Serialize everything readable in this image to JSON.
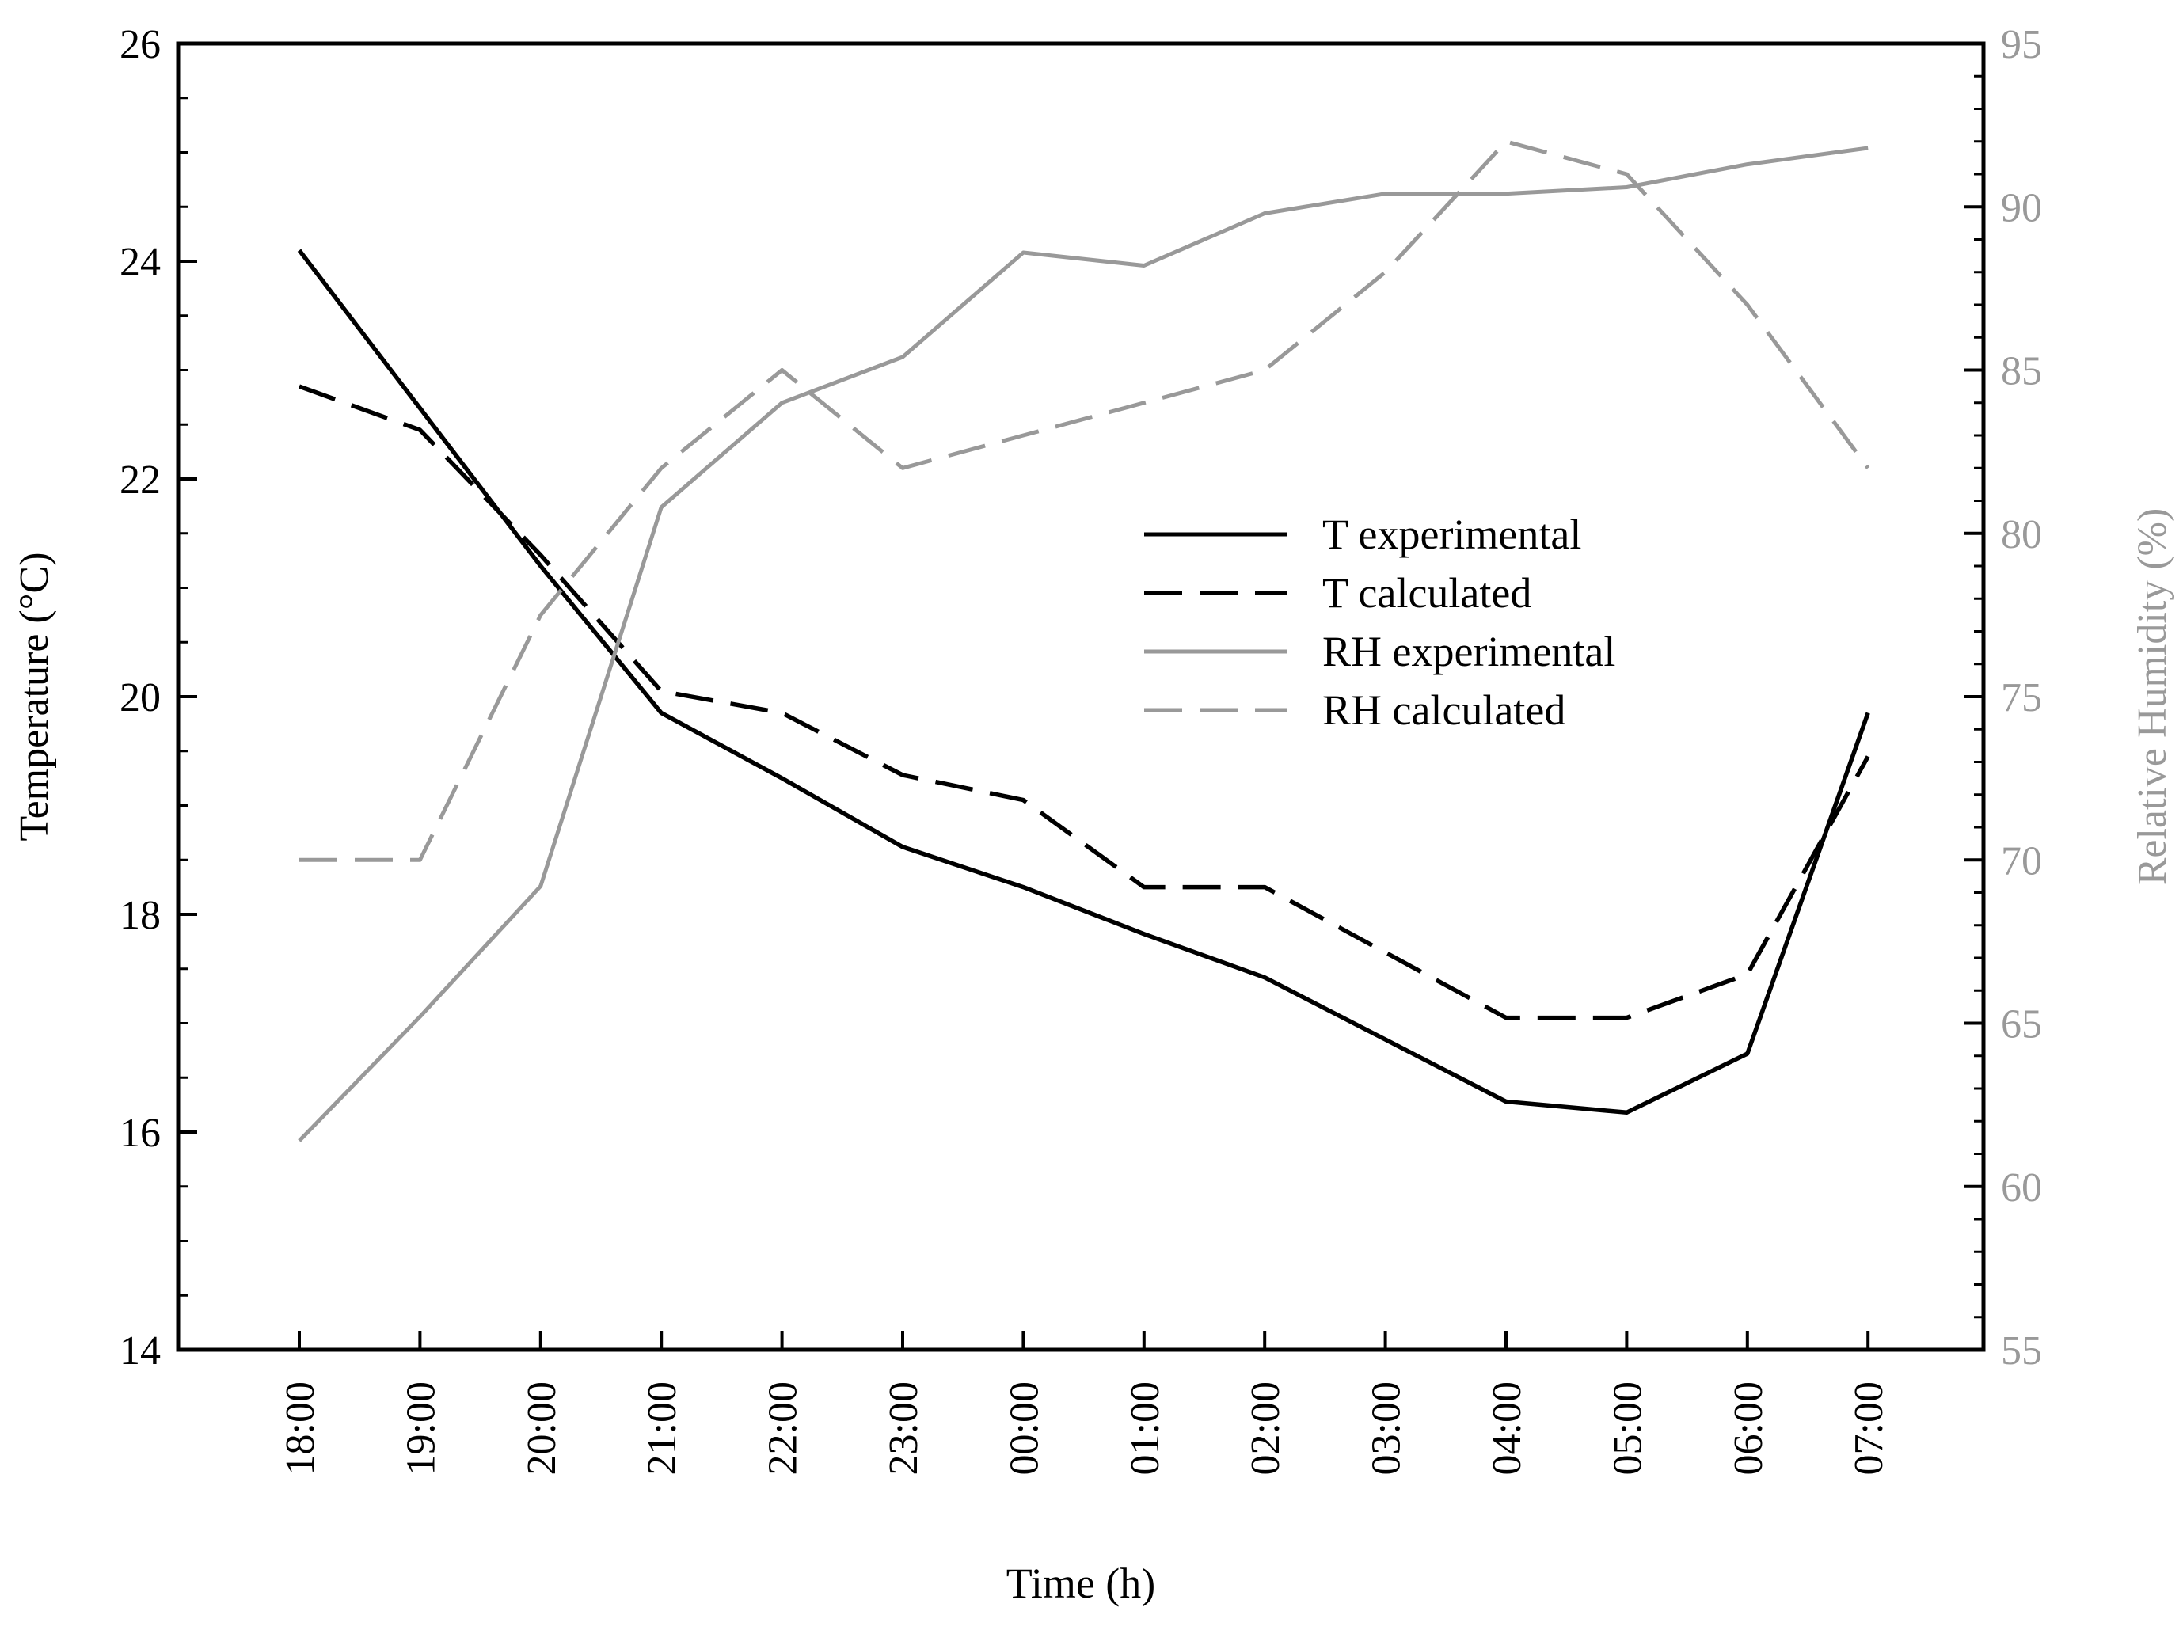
{
  "chart_data": {
    "type": "line",
    "title": "",
    "xlabel": "Time (h)",
    "ylabel": "Temperature (°C)",
    "y2label": "Relative Humidity (%)",
    "categories": [
      "18:00",
      "19:00",
      "20:00",
      "21:00",
      "22:00",
      "23:00",
      "00:00",
      "01:00",
      "02:00",
      "03:00",
      "04:00",
      "05:00",
      "06:00",
      "07:00"
    ],
    "ylim": [
      14,
      26
    ],
    "y2lim": [
      55,
      95
    ],
    "yticks": [
      14,
      16,
      18,
      20,
      22,
      24,
      26
    ],
    "y2ticks": [
      55,
      60,
      65,
      70,
      75,
      80,
      85,
      90,
      95
    ],
    "grid": false,
    "legend_position": "center-right",
    "colors": {
      "primary": "#000000",
      "secondary": "#999999"
    },
    "series": [
      {
        "name": "T experimental",
        "axis": "left",
        "style": "solid",
        "color": "#000000",
        "values": [
          24.1,
          22.65,
          21.2,
          19.85,
          19.25,
          18.62,
          18.25,
          17.82,
          17.42,
          16.85,
          16.28,
          16.18,
          16.72,
          19.85
        ]
      },
      {
        "name": "T calculated",
        "axis": "left",
        "style": "dashed",
        "color": "#000000",
        "values": [
          22.85,
          22.45,
          21.3,
          20.05,
          19.85,
          19.28,
          19.05,
          18.25,
          18.25,
          17.65,
          17.05,
          17.05,
          17.45,
          19.45
        ]
      },
      {
        "name": "RH experimental",
        "axis": "right",
        "style": "solid",
        "color": "#999999",
        "values": [
          61.4,
          65.2,
          69.2,
          80.8,
          84.0,
          85.4,
          88.6,
          88.2,
          89.8,
          90.4,
          90.4,
          90.6,
          91.3,
          91.8
        ]
      },
      {
        "name": "RH calculated",
        "axis": "right",
        "style": "dashed",
        "color": "#999999",
        "values": [
          70,
          70,
          77.5,
          82,
          85,
          82,
          83,
          84,
          85,
          88,
          92,
          91,
          87,
          82
        ]
      }
    ]
  }
}
